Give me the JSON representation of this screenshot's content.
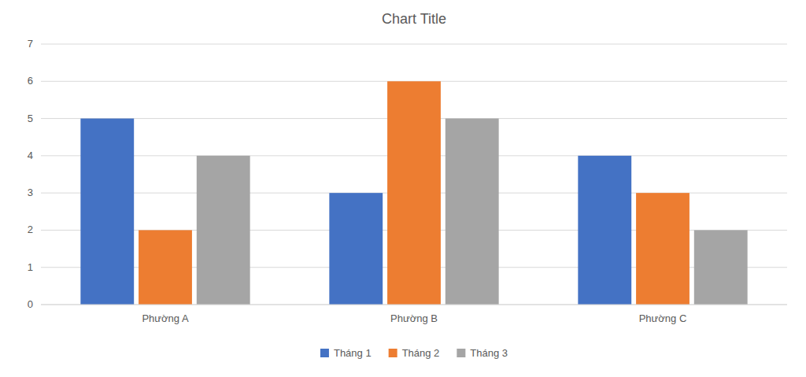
{
  "chart_data": {
    "type": "bar",
    "title": "Chart Title",
    "categories": [
      "Phường A",
      "Phường B",
      "Phường C"
    ],
    "series": [
      {
        "name": "Tháng 1",
        "color": "#4472C4",
        "values": [
          5,
          3,
          4
        ]
      },
      {
        "name": "Tháng 2",
        "color": "#ED7D31",
        "values": [
          2,
          6,
          3
        ]
      },
      {
        "name": "Tháng 3",
        "color": "#A5A5A5",
        "values": [
          4,
          5,
          2
        ]
      }
    ],
    "ylim": [
      0,
      7
    ],
    "yticks": [
      0,
      1,
      2,
      3,
      4,
      5,
      6,
      7
    ],
    "grid": true,
    "legend": "bottom"
  }
}
